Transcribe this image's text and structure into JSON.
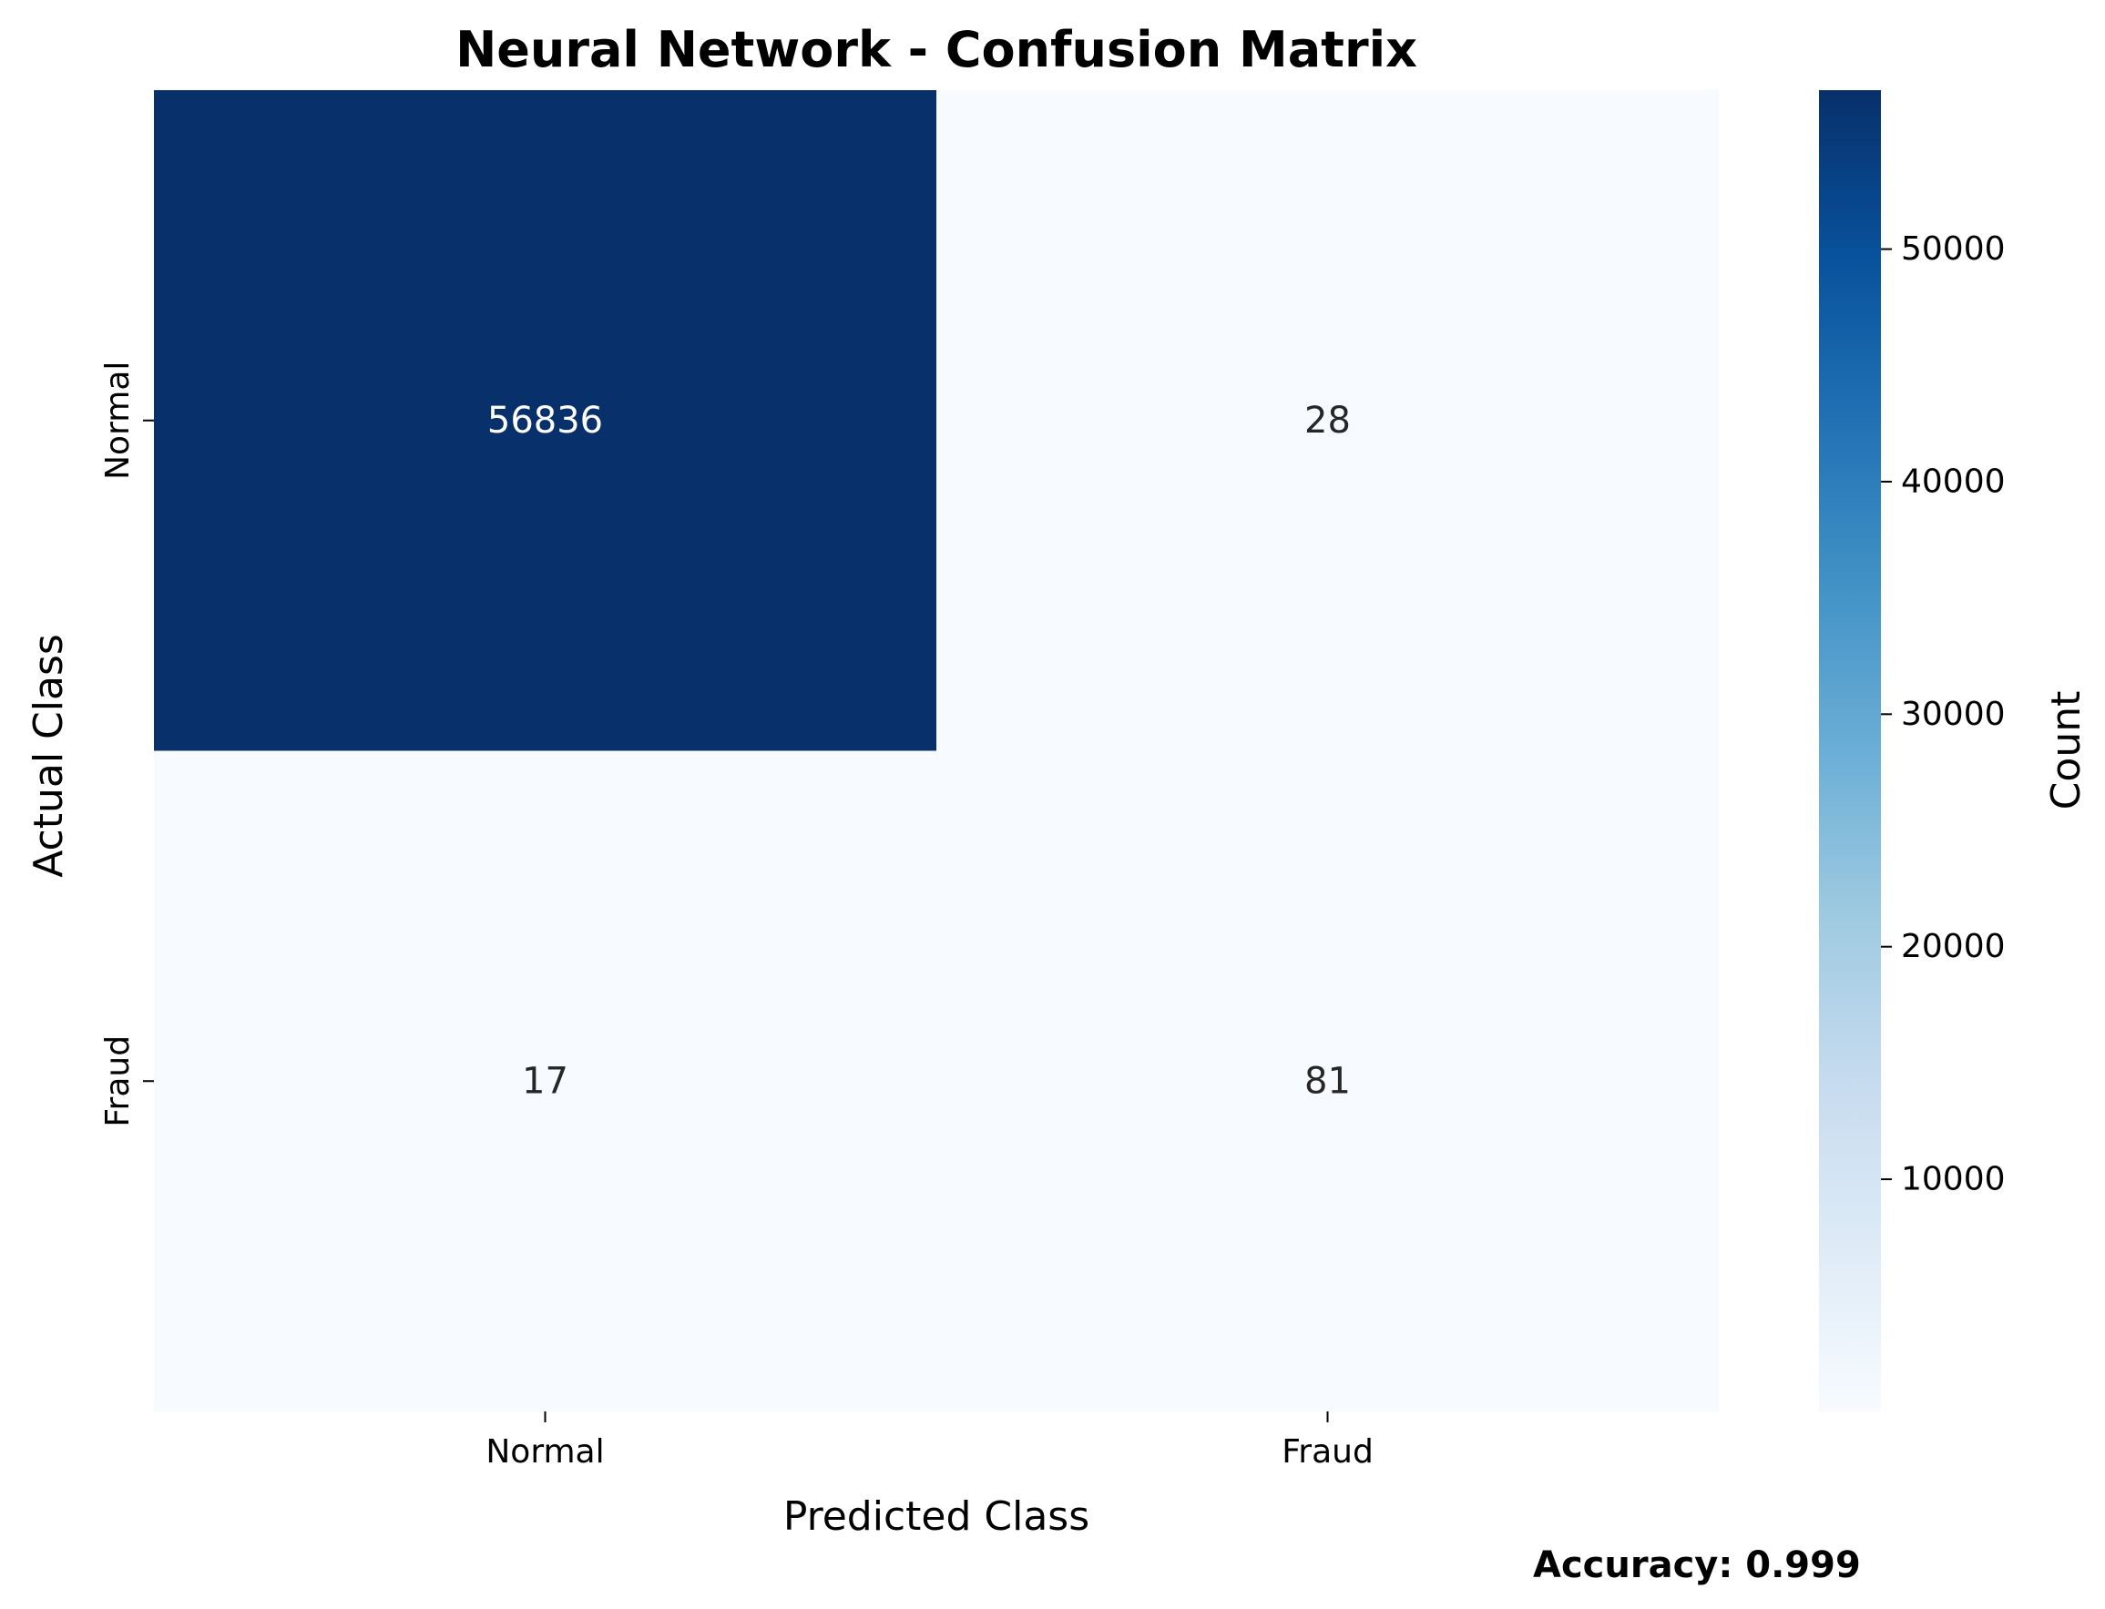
{
  "chart_data": {
    "type": "heatmap",
    "title": "Neural Network - Confusion Matrix",
    "xlabel": "Predicted Class",
    "ylabel": "Actual Class",
    "x_categories": [
      "Normal",
      "Fraud"
    ],
    "y_categories": [
      "Normal",
      "Fraud"
    ],
    "values": [
      [
        56836,
        28
      ],
      [
        17,
        81
      ]
    ],
    "colormap": "Blues",
    "colorbar": {
      "label": "Count",
      "ticks": [
        "10000",
        "20000",
        "30000",
        "40000",
        "50000"
      ],
      "range": [
        17,
        56836
      ]
    },
    "annotation": "Accuracy: 0.999"
  }
}
